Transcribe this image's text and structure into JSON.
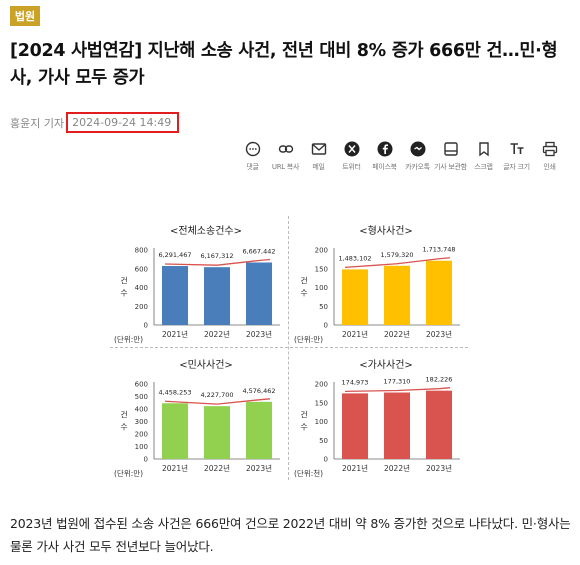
{
  "article": {
    "category": "법원",
    "title": "[2024 사법연감] 지난해 소송 사건, 전년 대비 8% 증가 666만 건…민·형사, 가사 모두 증가",
    "reporter": "홍윤지 기자",
    "datetime": "2024-09-24 14:49",
    "body": "2023년 법원에 접수된 소송 사건은 666만여 건으로 2022년 대비 약 8% 증가한 것으로 나타났다. 민·형사는 물론 가사 사건 모두 전년보다 늘어났다."
  },
  "toolbar": [
    {
      "name": "comment-icon",
      "label": "댓글"
    },
    {
      "name": "link-icon",
      "label": "URL 복사"
    },
    {
      "name": "mail-icon",
      "label": "메일"
    },
    {
      "name": "twitter-x-icon",
      "label": "트위터"
    },
    {
      "name": "facebook-icon",
      "label": "페이스북"
    },
    {
      "name": "kakaotalk-icon",
      "label": "카카오톡"
    },
    {
      "name": "save-icon",
      "label": "기사 보관함"
    },
    {
      "name": "bookmark-icon",
      "label": "스크랩"
    },
    {
      "name": "font-size-icon",
      "label": "글자 크기"
    },
    {
      "name": "print-icon",
      "label": "인쇄"
    }
  ],
  "colors": {
    "badge": "#c9a227",
    "highlight": "#e11d1d",
    "trend_line": "#d9534f"
  },
  "chart_data": [
    {
      "type": "bar",
      "title": "<전체소송건수>",
      "categories": [
        "2021년",
        "2022년",
        "2023년"
      ],
      "values": [
        6291467,
        6167312,
        6667442
      ],
      "value_labels": [
        "6,291,467",
        "6,167,312",
        "6,667,442"
      ],
      "ylabel": "건수",
      "unit": "(단위:만)",
      "ylim": [
        0,
        800
      ],
      "yticks": [
        "0",
        "200",
        "400",
        "600",
        "800"
      ],
      "scale": 10000,
      "color": "#4a7ebb"
    },
    {
      "type": "bar",
      "title": "<형사사건>",
      "categories": [
        "2021년",
        "2022년",
        "2023년"
      ],
      "values": [
        1483102,
        1579320,
        1713748
      ],
      "value_labels": [
        "1,483,102",
        "1,579,320",
        "1,713,748"
      ],
      "ylabel": "건수",
      "unit": "(단위:만)",
      "ylim": [
        0,
        200
      ],
      "yticks": [
        "0",
        "50",
        "100",
        "150",
        "200"
      ],
      "scale": 10000,
      "color": "#ffc000"
    },
    {
      "type": "bar",
      "title": "<민사사건>",
      "categories": [
        "2021년",
        "2022년",
        "2023년"
      ],
      "values": [
        4458253,
        4227700,
        4576462
      ],
      "value_labels": [
        "4,458,253",
        "4,227,700",
        "4,576,462"
      ],
      "ylabel": "건수",
      "unit": "(단위:만)",
      "ylim": [
        0,
        600
      ],
      "yticks": [
        "0",
        "100",
        "200",
        "300",
        "400",
        "500",
        "600"
      ],
      "scale": 10000,
      "color": "#92d050"
    },
    {
      "type": "bar",
      "title": "<가사사건>",
      "categories": [
        "2021년",
        "2022년",
        "2023년"
      ],
      "values": [
        174973,
        177310,
        182226
      ],
      "value_labels": [
        "174,973",
        "177,310",
        "182,226"
      ],
      "ylabel": "건수",
      "unit": "(단위:천)",
      "ylim": [
        0,
        200
      ],
      "yticks": [
        "0",
        "50",
        "100",
        "150",
        "200"
      ],
      "scale": 1000,
      "color": "#d9534f"
    }
  ]
}
